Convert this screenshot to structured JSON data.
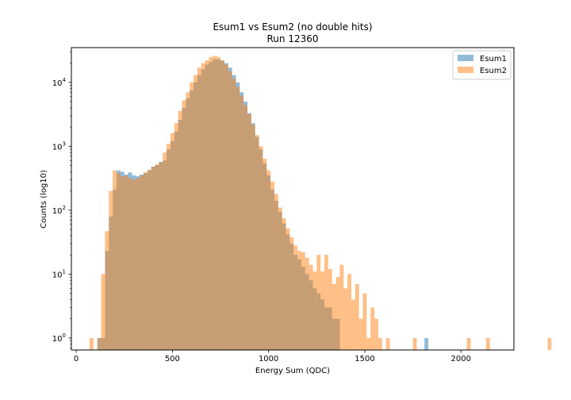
{
  "chart_data": {
    "type": "bar",
    "title": "Esum1 vs Esum2 (no double hits)",
    "subtitle": "Run 12360",
    "xlabel": "Energy Sum (QDC)",
    "ylabel": "Counts (log10)",
    "xlim": [
      -25,
      2275
    ],
    "ylim": [
      0.65,
      35000
    ],
    "y_scale": "log",
    "x_ticks": [
      0,
      500,
      1000,
      1500,
      2000
    ],
    "y_ticks": [
      {
        "value": 1,
        "base": "10",
        "exp": "0"
      },
      {
        "value": 10,
        "base": "10",
        "exp": "1"
      },
      {
        "value": 100,
        "base": "10",
        "exp": "2"
      },
      {
        "value": 1000,
        "base": "10",
        "exp": "3"
      },
      {
        "value": 10000,
        "base": "10",
        "exp": "4"
      }
    ],
    "legend_position": "top-right",
    "bin_width": 20,
    "series": [
      {
        "name": "Esum1",
        "color": "#1f77b4",
        "x_start": 90,
        "values": [
          0,
          1,
          1,
          23,
          80,
          210,
          420,
          400,
          360,
          390,
          350,
          340,
          360,
          380,
          420,
          480,
          510,
          570,
          600,
          900,
          1200,
          1700,
          2600,
          4000,
          5600,
          7500,
          10000,
          13000,
          16000,
          19000,
          21000,
          23000,
          23000,
          22000,
          20000,
          17000,
          13000,
          10000,
          7000,
          5000,
          3300,
          2300,
          1400,
          900,
          540,
          350,
          210,
          140,
          95,
          62,
          42,
          30,
          20,
          17,
          13,
          10,
          8,
          6,
          5,
          4,
          3,
          3,
          2,
          2,
          0,
          0,
          0,
          0,
          0,
          0,
          0,
          0,
          0,
          0,
          0,
          0,
          0,
          0,
          0,
          0,
          0,
          0,
          0,
          0,
          0,
          0,
          1
        ]
      },
      {
        "name": "Esum2",
        "color": "#ff7f0e",
        "x_start": 70,
        "values": [
          1,
          0,
          1,
          10,
          47,
          200,
          420,
          380,
          340,
          350,
          320,
          300,
          320,
          350,
          390,
          430,
          480,
          520,
          560,
          800,
          1100,
          1600,
          2300,
          3600,
          5200,
          7000,
          10000,
          13000,
          17000,
          20000,
          22000,
          25000,
          26000,
          25000,
          22000,
          19000,
          15000,
          11500,
          8500,
          6200,
          4400,
          3200,
          2200,
          1500,
          1000,
          640,
          420,
          280,
          180,
          110,
          75,
          52,
          38,
          28,
          23,
          22,
          18,
          14,
          11,
          20,
          11,
          20,
          12,
          7,
          9,
          14,
          6,
          10,
          4,
          7,
          2,
          5,
          1,
          3,
          2,
          1,
          0,
          1,
          0,
          0,
          0,
          0,
          0,
          0,
          1,
          0,
          0,
          0,
          0,
          0,
          0,
          0,
          0,
          0,
          0,
          0,
          0,
          0,
          1,
          0,
          0,
          0,
          0,
          1,
          0,
          0,
          0,
          0,
          0,
          0,
          0,
          0,
          0,
          0,
          0,
          0,
          0,
          0,
          0,
          1
        ]
      }
    ]
  }
}
